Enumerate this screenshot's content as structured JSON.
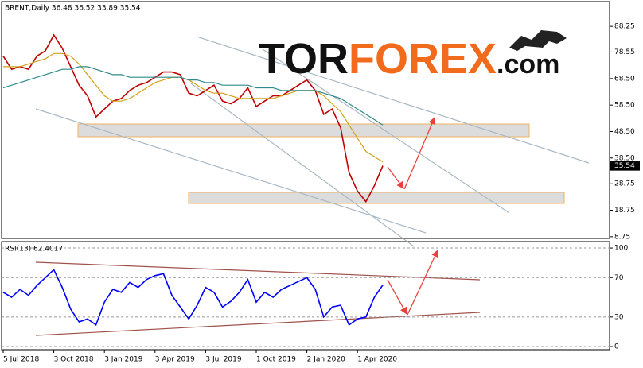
{
  "chart_data": [
    {
      "type": "line",
      "title": "BRENT,Daily  36.48 36.52 33.89 35.54",
      "watermark": [
        "TOR",
        "FOREX",
        ".com"
      ],
      "series": [
        {
          "color": "#c00000",
          "values": [
            77,
            72,
            73,
            72,
            77,
            79,
            85,
            80,
            73,
            66,
            62,
            54,
            57,
            60,
            61,
            64,
            66,
            67,
            69,
            71,
            71,
            70,
            63,
            62,
            64,
            66,
            60,
            59,
            61,
            65,
            58,
            60,
            62,
            62,
            64,
            66,
            68,
            64,
            55,
            57,
            50,
            33,
            26,
            22,
            28,
            35.54
          ]
        },
        {
          "color": "#d4a017",
          "values": [
            73,
            73,
            73,
            74,
            75,
            76,
            78,
            78,
            77,
            74,
            70,
            66,
            62,
            60,
            60,
            61,
            63,
            65,
            67,
            68,
            69,
            69,
            68,
            66,
            64,
            63,
            63,
            62,
            61,
            61,
            61,
            61,
            61,
            62,
            63,
            64,
            64,
            64,
            62,
            59,
            56,
            51,
            46,
            41,
            39,
            37
          ]
        },
        {
          "color": "#2e8b8b",
          "values": [
            65,
            66,
            67,
            68,
            69,
            70,
            71,
            72,
            72,
            73,
            73,
            72,
            71,
            70,
            70,
            69,
            69,
            69,
            69,
            69,
            69,
            69,
            68,
            68,
            67,
            67,
            66,
            66,
            66,
            66,
            65,
            65,
            65,
            64,
            64,
            64,
            64,
            64,
            63,
            62,
            61,
            59,
            57,
            55,
            53,
            51
          ]
        }
      ],
      "ylim": [
        8.1,
        97.6
      ],
      "yticks": [
        8.75,
        18.75,
        28.75,
        {
          "value": 38.5,
          "label": "38.50"
        },
        {
          "value": 48.5,
          "label": "48.50"
        },
        {
          "value": 58.5,
          "label": "58.50"
        },
        {
          "value": 68.5,
          "label": "68.50"
        },
        78.55,
        88.25
      ],
      "last_value": 35.54
    },
    {
      "type": "line",
      "title": "RSI(13) 62.4017",
      "categories": [
        "5 Jul 2018",
        null,
        null,
        null,
        null,
        null,
        "3 Oct 2018",
        null,
        null,
        null,
        null,
        null,
        "3 Jan 2019",
        null,
        null,
        null,
        null,
        null,
        "3 Apr 2019",
        null,
        null,
        null,
        null,
        null,
        "3 Jul 2019",
        null,
        null,
        null,
        null,
        null,
        "1 Oct 2019",
        null,
        null,
        null,
        null,
        null,
        "2 Jan 2020",
        null,
        null,
        null,
        null,
        null,
        "1 Apr 2020",
        null,
        null,
        null
      ],
      "series": [
        {
          "color": "#0000ff",
          "values": [
            55,
            50,
            58,
            52,
            62,
            70,
            78,
            60,
            38,
            25,
            28,
            22,
            45,
            58,
            55,
            65,
            60,
            68,
            72,
            74,
            52,
            40,
            28,
            42,
            60,
            55,
            40,
            46,
            55,
            68,
            45,
            55,
            50,
            58,
            62,
            66,
            70,
            58,
            30,
            40,
            42,
            22,
            28,
            30,
            50,
            62.4017
          ]
        }
      ],
      "ylim": [
        -3.2,
        106.5
      ],
      "yticks": [
        0,
        30,
        70,
        100
      ],
      "grid": true
    }
  ]
}
